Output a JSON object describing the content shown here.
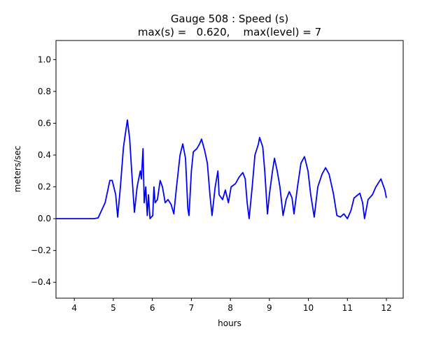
{
  "chart_data": {
    "type": "line",
    "title": "Gauge 508 : Speed (s)",
    "subtitle": "max(s) =   0.620,    max(level) = 7",
    "xlabel": "hours",
    "ylabel": "meters/sec",
    "xlim": [
      3.53,
      12.43
    ],
    "ylim": [
      -0.5,
      1.12
    ],
    "xticks": [
      4,
      5,
      6,
      7,
      8,
      9,
      10,
      11,
      12
    ],
    "xtick_labels": [
      "4",
      "5",
      "6",
      "7",
      "8",
      "9",
      "10",
      "11",
      "12"
    ],
    "yticks": [
      -0.4,
      -0.2,
      0.0,
      0.2,
      0.4,
      0.6,
      0.8,
      1.0
    ],
    "ytick_labels": [
      "−0.4",
      "−0.2",
      "0.0",
      "0.2",
      "0.4",
      "0.6",
      "0.8",
      "1.0"
    ],
    "grid": false,
    "series": [
      {
        "name": "speed",
        "color": "#0000ff",
        "x": [
          3.53,
          4.0,
          4.5,
          4.61,
          4.79,
          4.91,
          4.97,
          5.06,
          5.11,
          5.18,
          5.26,
          5.33,
          5.36,
          5.42,
          5.47,
          5.54,
          5.61,
          5.69,
          5.72,
          5.76,
          5.79,
          5.83,
          5.87,
          5.9,
          5.94,
          6.01,
          6.04,
          6.07,
          6.13,
          6.2,
          6.26,
          6.33,
          6.4,
          6.48,
          6.55,
          6.62,
          6.71,
          6.78,
          6.85,
          6.91,
          6.94,
          7.0,
          7.05,
          7.14,
          7.21,
          7.26,
          7.34,
          7.41,
          7.48,
          7.53,
          7.61,
          7.68,
          7.71,
          7.8,
          7.87,
          7.95,
          8.02,
          8.13,
          8.22,
          8.32,
          8.38,
          8.43,
          8.48,
          8.56,
          8.63,
          8.72,
          8.75,
          8.83,
          8.88,
          8.95,
          9.0,
          9.08,
          9.13,
          9.2,
          9.27,
          9.35,
          9.43,
          9.51,
          9.58,
          9.63,
          9.72,
          9.81,
          9.9,
          9.99,
          10.06,
          10.15,
          10.24,
          10.35,
          10.44,
          10.53,
          10.64,
          10.73,
          10.82,
          10.91,
          11.0,
          11.09,
          11.17,
          11.32,
          11.39,
          11.44,
          11.53,
          11.64,
          11.73,
          11.86,
          11.96,
          12.0
        ],
        "y": [
          0,
          0,
          0,
          0.005,
          0.1,
          0.24,
          0.24,
          0.15,
          0.01,
          0.2,
          0.45,
          0.57,
          0.62,
          0.5,
          0.3,
          0.04,
          0.2,
          0.3,
          0.25,
          0.44,
          0.1,
          0.2,
          0.02,
          0.15,
          0.0,
          0.02,
          0.2,
          0.1,
          0.12,
          0.24,
          0.2,
          0.1,
          0.12,
          0.09,
          0.03,
          0.2,
          0.4,
          0.47,
          0.38,
          0.06,
          0.02,
          0.3,
          0.42,
          0.44,
          0.47,
          0.5,
          0.43,
          0.35,
          0.14,
          0.02,
          0.2,
          0.3,
          0.15,
          0.12,
          0.18,
          0.1,
          0.2,
          0.22,
          0.26,
          0.29,
          0.25,
          0.1,
          0.0,
          0.2,
          0.4,
          0.47,
          0.51,
          0.45,
          0.3,
          0.03,
          0.15,
          0.3,
          0.38,
          0.3,
          0.2,
          0.02,
          0.12,
          0.17,
          0.13,
          0.03,
          0.2,
          0.35,
          0.39,
          0.3,
          0.15,
          0.01,
          0.2,
          0.28,
          0.32,
          0.28,
          0.16,
          0.02,
          0.01,
          0.03,
          0.0,
          0.05,
          0.13,
          0.16,
          0.1,
          0.0,
          0.12,
          0.15,
          0.2,
          0.25,
          0.18,
          0.13
        ]
      }
    ]
  }
}
